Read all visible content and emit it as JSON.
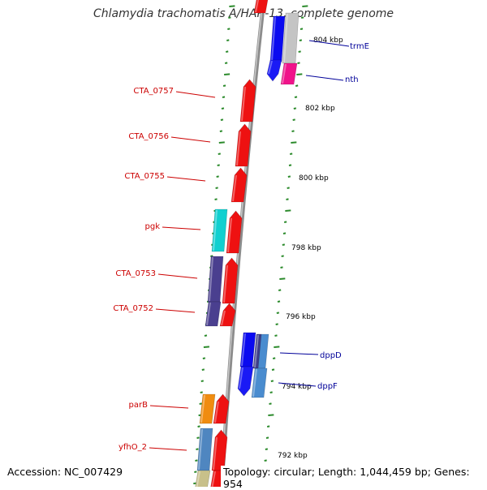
{
  "title": "Chlamydia trachomatis A/HAR-13, complete genome",
  "footer": {
    "accession": "Accession: NC_007429",
    "summary": "Topology: circular; Length: 1,044,459 bp; Genes: 954"
  },
  "colors": {
    "backbone": "#8c8c8c",
    "forward_gene": "#ee1111",
    "left_label": "#cc0000",
    "right_label": "#000099",
    "tick": "#2b8a2b"
  },
  "scale_labels": [
    "804 kbp",
    "802 kbp",
    "800 kbp",
    "798 kbp",
    "796 kbp",
    "794 kbp",
    "792 kbp"
  ],
  "left_labels": [
    "CTA_0757",
    "CTA_0756",
    "CTA_0755",
    "pgk",
    "CTA_0753",
    "CTA_0752",
    "parB",
    "yfhO_2"
  ],
  "right_labels": [
    "trmE",
    "nth",
    "dppD",
    "dppF"
  ]
}
